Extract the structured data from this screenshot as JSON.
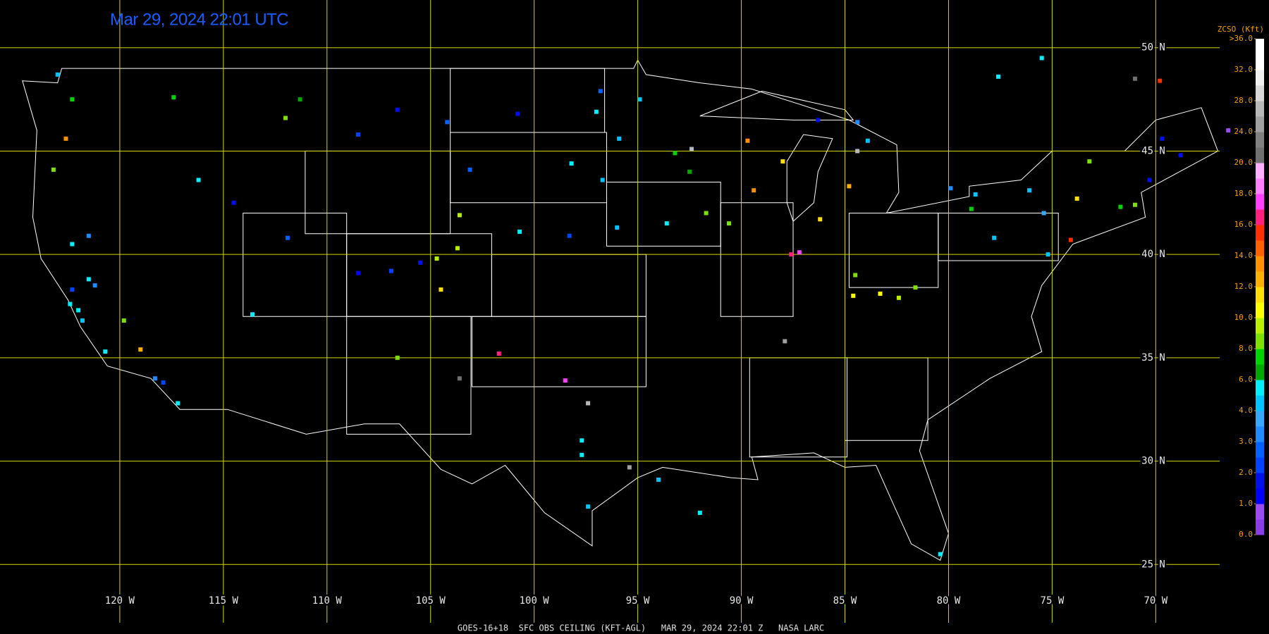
{
  "header": {
    "timestamp": "Mar 29, 2024 22:01 UTC"
  },
  "caption": "GOES-16+18  SFC OBS CEILING (KFT-AGL)   MAR 29, 2024 22:01 Z   NASA LARC",
  "grid": {
    "latitudes": [
      {
        "value": 50,
        "label": "50 N"
      },
      {
        "value": 45,
        "label": "45 N"
      },
      {
        "value": 40,
        "label": "40 N"
      },
      {
        "value": 35,
        "label": "35 N"
      },
      {
        "value": 30,
        "label": "30 N"
      },
      {
        "value": 25,
        "label": "25 N"
      }
    ],
    "longitudes": [
      {
        "value": -120,
        "label": "120 W"
      },
      {
        "value": -115,
        "label": "115 W"
      },
      {
        "value": -110,
        "label": "110 W"
      },
      {
        "value": -105,
        "label": "105 W"
      },
      {
        "value": -100,
        "label": "100 W"
      },
      {
        "value": -95,
        "label": "95 W"
      },
      {
        "value": -90,
        "label": "90 W"
      },
      {
        "value": -85,
        "label": "85 W"
      },
      {
        "value": -80,
        "label": "80 W"
      },
      {
        "value": -75,
        "label": "75 W"
      },
      {
        "value": -70,
        "label": "70 W"
      }
    ]
  },
  "legend": {
    "title": "ZCSO (Kft)",
    "ticks": [
      {
        "value": 0,
        "label": "0.0"
      },
      {
        "value": 1,
        "label": "1.0"
      },
      {
        "value": 2,
        "label": "2.0"
      },
      {
        "value": 3,
        "label": "3.0"
      },
      {
        "value": 4,
        "label": "4.0"
      },
      {
        "value": 6,
        "label": "6.0"
      },
      {
        "value": 8,
        "label": "8.0"
      },
      {
        "value": 10,
        "label": "10.0"
      },
      {
        "value": 12,
        "label": "12.0"
      },
      {
        "value": 14,
        "label": "14.0"
      },
      {
        "value": 16,
        "label": "16.0"
      },
      {
        "value": 18,
        "label": "18.0"
      },
      {
        "value": 20,
        "label": "20.0"
      },
      {
        "value": 24,
        "label": "24.0"
      },
      {
        "value": 28,
        "label": "28.0"
      },
      {
        "value": 32,
        "label": "32.0"
      },
      {
        "value": 36,
        "label": ">36.0"
      }
    ],
    "colors": [
      "#8a3ce6",
      "#9a4cf0",
      "#0000ff",
      "#0010e8",
      "#0044ff",
      "#0062ff",
      "#1e8cff",
      "#38a8ff",
      "#00c4ff",
      "#00f0ff",
      "#00a800",
      "#00d400",
      "#7ee000",
      "#b8f000",
      "#ffff00",
      "#ffe000",
      "#ffb000",
      "#ff9000",
      "#ff6000",
      "#ff3000",
      "#ff2080",
      "#ff40ff",
      "#ff80ff",
      "#ffb0ff",
      "#707070",
      "#808080",
      "#a0a0a0",
      "#b8b8b8",
      "#d8d8d8",
      "#f0f0f0",
      "#ffffff",
      "#ffffff"
    ]
  },
  "stations": [
    {
      "lon": -122.4,
      "lat": 37.6,
      "ceiling": 5
    },
    {
      "lon": -122,
      "lat": 37.3,
      "ceiling": 5
    },
    {
      "lon": -121.8,
      "lat": 36.8,
      "ceiling": 4
    },
    {
      "lon": -121.2,
      "lat": 38.5,
      "ceiling": 3
    },
    {
      "lon": -121.5,
      "lat": 38.8,
      "ceiling": 5
    },
    {
      "lon": -122.3,
      "lat": 38.3,
      "ceiling": 2
    },
    {
      "lon": -120.7,
      "lat": 35.3,
      "ceiling": 5
    },
    {
      "lon": -118.3,
      "lat": 34,
      "ceiling": 3
    },
    {
      "lon": -117.9,
      "lat": 33.8,
      "ceiling": 2
    },
    {
      "lon": -117.2,
      "lat": 32.8,
      "ceiling": 5
    },
    {
      "lon": -119.8,
      "lat": 36.8,
      "ceiling": 8
    },
    {
      "lon": -119,
      "lat": 35.4,
      "ceiling": 12
    },
    {
      "lon": -121.5,
      "lat": 40.9,
      "ceiling": 3
    },
    {
      "lon": -122.3,
      "lat": 40.5,
      "ceiling": 5
    },
    {
      "lon": -123.2,
      "lat": 44.1,
      "ceiling": 8
    },
    {
      "lon": -122.6,
      "lat": 45.6,
      "ceiling": 13
    },
    {
      "lon": -122.3,
      "lat": 47.5,
      "ceiling": 7
    },
    {
      "lon": -123,
      "lat": 48.7,
      "ceiling": 4
    },
    {
      "lon": -117.4,
      "lat": 47.6,
      "ceiling": 7
    },
    {
      "lon": -116.2,
      "lat": 43.6,
      "ceiling": 5
    },
    {
      "lon": -114.5,
      "lat": 42.5,
      "ceiling": 1.5
    },
    {
      "lon": -108.5,
      "lat": 45.8,
      "ceiling": 2
    },
    {
      "lon": -106.6,
      "lat": 47,
      "ceiling": 1.5
    },
    {
      "lon": -104.2,
      "lat": 46.4,
      "ceiling": 2.5
    },
    {
      "lon": -111.3,
      "lat": 47.5,
      "ceiling": 6
    },
    {
      "lon": -112,
      "lat": 46.6,
      "ceiling": 8
    },
    {
      "lon": -100.8,
      "lat": 46.8,
      "ceiling": 1.5
    },
    {
      "lon": -97,
      "lat": 46.9,
      "ceiling": 5
    },
    {
      "lon": -96.8,
      "lat": 47.9,
      "ceiling": 2.5
    },
    {
      "lon": -94.9,
      "lat": 47.5,
      "ceiling": 4.5
    },
    {
      "lon": -93.2,
      "lat": 44.9,
      "ceiling": 7
    },
    {
      "lon": -92.5,
      "lat": 44,
      "ceiling": 6.5
    },
    {
      "lon": -95.9,
      "lat": 45.6,
      "ceiling": 4
    },
    {
      "lon": -93.6,
      "lat": 41.5,
      "ceiling": 5
    },
    {
      "lon": -91.7,
      "lat": 42,
      "ceiling": 8
    },
    {
      "lon": -96,
      "lat": 41.3,
      "ceiling": 4.5
    },
    {
      "lon": -90.6,
      "lat": 41.5,
      "ceiling": 8
    },
    {
      "lon": -89.4,
      "lat": 43.1,
      "ceiling": 13
    },
    {
      "lon": -88,
      "lat": 44.5,
      "ceiling": 11
    },
    {
      "lon": -89.7,
      "lat": 45.5,
      "ceiling": 13
    },
    {
      "lon": -87.6,
      "lat": 40,
      "ceiling": 16.5
    },
    {
      "lon": -87.2,
      "lat": 40.1,
      "ceiling": 17
    },
    {
      "lon": -104.7,
      "lat": 39.8,
      "ceiling": 9
    },
    {
      "lon": -105.5,
      "lat": 39.6,
      "ceiling": 1.5
    },
    {
      "lon": -106.9,
      "lat": 39.2,
      "ceiling": 2
    },
    {
      "lon": -108.5,
      "lat": 39.1,
      "ceiling": 1
    },
    {
      "lon": -104.5,
      "lat": 38.3,
      "ceiling": 11
    },
    {
      "lon": -103.7,
      "lat": 40.3,
      "ceiling": 9
    },
    {
      "lon": -111.9,
      "lat": 40.8,
      "ceiling": 2.5
    },
    {
      "lon": -113.6,
      "lat": 37.1,
      "ceiling": 5
    },
    {
      "lon": -106.6,
      "lat": 35,
      "ceiling": 8
    },
    {
      "lon": -103.6,
      "lat": 34,
      "ceiling": 21
    },
    {
      "lon": -101.7,
      "lat": 35.2,
      "ceiling": 16
    },
    {
      "lon": -98.5,
      "lat": 33.9,
      "ceiling": 17
    },
    {
      "lon": -97.4,
      "lat": 32.8,
      "ceiling": 27
    },
    {
      "lon": -97.7,
      "lat": 31,
      "ceiling": 5
    },
    {
      "lon": -97.7,
      "lat": 30.3,
      "ceiling": 5
    },
    {
      "lon": -97.4,
      "lat": 27.8,
      "ceiling": 4.5
    },
    {
      "lon": -95.4,
      "lat": 29.7,
      "ceiling": 24
    },
    {
      "lon": -94,
      "lat": 29.1,
      "ceiling": 4.5
    },
    {
      "lon": -84.5,
      "lat": 39,
      "ceiling": 8
    },
    {
      "lon": -83.3,
      "lat": 38.1,
      "ceiling": 10
    },
    {
      "lon": -84.8,
      "lat": 43.3,
      "ceiling": 12
    },
    {
      "lon": -86.2,
      "lat": 41.7,
      "ceiling": 11
    },
    {
      "lon": -86.3,
      "lat": 46.5,
      "ceiling": 1.5
    },
    {
      "lon": -84.4,
      "lat": 46.4,
      "ceiling": 3
    },
    {
      "lon": -83.9,
      "lat": 45.5,
      "ceiling": 4
    },
    {
      "lon": -79.9,
      "lat": 43.2,
      "ceiling": 3
    },
    {
      "lon": -78.7,
      "lat": 42.9,
      "ceiling": 4
    },
    {
      "lon": -76.1,
      "lat": 43.1,
      "ceiling": 4
    },
    {
      "lon": -75.4,
      "lat": 42,
      "ceiling": 3.5
    },
    {
      "lon": -77.8,
      "lat": 40.8,
      "ceiling": 4
    },
    {
      "lon": -75.2,
      "lat": 40,
      "ceiling": 4.5
    },
    {
      "lon": -73.8,
      "lat": 42.7,
      "ceiling": 11
    },
    {
      "lon": -73.2,
      "lat": 44.5,
      "ceiling": 8
    },
    {
      "lon": -71.7,
      "lat": 42.3,
      "ceiling": 7
    },
    {
      "lon": -71,
      "lat": 42.4,
      "ceiling": 8
    },
    {
      "lon": -70.3,
      "lat": 43.6,
      "ceiling": 1.5
    },
    {
      "lon": -68.8,
      "lat": 44.8,
      "ceiling": 1.5
    },
    {
      "lon": -69.7,
      "lat": 45.6,
      "ceiling": 1.5
    },
    {
      "lon": -74.1,
      "lat": 40.7,
      "ceiling": 15
    },
    {
      "lon": -78.9,
      "lat": 42.2,
      "ceiling": 7
    },
    {
      "lon": -75.5,
      "lat": 49.5,
      "ceiling": 5
    },
    {
      "lon": -77.6,
      "lat": 48.6,
      "ceiling": 5
    },
    {
      "lon": -71,
      "lat": 48.5,
      "ceiling": 21
    },
    {
      "lon": -69.8,
      "lat": 48.4,
      "ceiling": 15
    },
    {
      "lon": -66.5,
      "lat": 46,
      "ceiling": 0.5
    },
    {
      "lon": -84.6,
      "lat": 38,
      "ceiling": 10
    },
    {
      "lon": -81.6,
      "lat": 38.4,
      "ceiling": 8
    },
    {
      "lon": -82.4,
      "lat": 37.9,
      "ceiling": 9
    },
    {
      "lon": -80.4,
      "lat": 25.5,
      "ceiling": 5
    },
    {
      "lon": -92,
      "lat": 27.5,
      "ceiling": 5
    },
    {
      "lon": -98.2,
      "lat": 44.4,
      "ceiling": 5
    },
    {
      "lon": -96.7,
      "lat": 43.6,
      "ceiling": 4.5
    },
    {
      "lon": -103.1,
      "lat": 44.1,
      "ceiling": 2.5
    },
    {
      "lon": -98.3,
      "lat": 40.9,
      "ceiling": 2
    },
    {
      "lon": -100.7,
      "lat": 41.1,
      "ceiling": 5
    },
    {
      "lon": -103.6,
      "lat": 41.9,
      "ceiling": 9
    },
    {
      "lon": -87.9,
      "lat": 35.8,
      "ceiling": 25
    },
    {
      "lon": -84.4,
      "lat": 45,
      "ceiling": 26
    },
    {
      "lon": -92.4,
      "lat": 45.1,
      "ceiling": 26
    }
  ]
}
